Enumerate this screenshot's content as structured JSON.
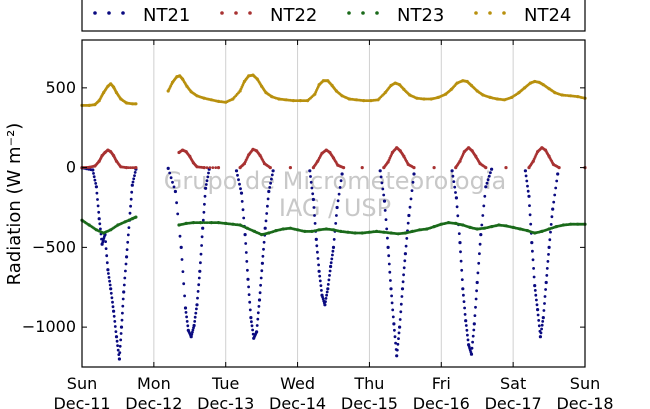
{
  "chart_data": {
    "type": "scatter",
    "ylabel": "Radiation (W m⁻²)",
    "ylim": [
      -1250,
      800
    ],
    "yticks": [
      500,
      0,
      -500,
      -1000
    ],
    "ytick_labels": [
      "500",
      "0",
      "−500",
      "−1000"
    ],
    "xlim": [
      0,
      7
    ],
    "xticks": [
      {
        "x": 0,
        "day": "Sun",
        "date": "Dec-11"
      },
      {
        "x": 1,
        "day": "Mon",
        "date": "Dec-12"
      },
      {
        "x": 2,
        "day": "Tue",
        "date": "Dec-13"
      },
      {
        "x": 3,
        "day": "Wed",
        "date": "Dec-14"
      },
      {
        "x": 4,
        "day": "Thu",
        "date": "Dec-15"
      },
      {
        "x": 5,
        "day": "Fri",
        "date": "Dec-16"
      },
      {
        "x": 6,
        "day": "Sat",
        "date": "Dec-17"
      },
      {
        "x": 7,
        "day": "Sun",
        "date": "Dec-18"
      }
    ],
    "grid": "vertical",
    "legend_position": "top",
    "watermark": [
      "Grupo de Micrometeorologia",
      "IAG / USP"
    ],
    "series": [
      {
        "name": "NT21",
        "color": "#0a0a80",
        "points": [
          [
            0.0,
            -2
          ],
          [
            0.15,
            -15
          ],
          [
            0.2,
            -120
          ],
          [
            0.24,
            -320
          ],
          [
            0.28,
            -480
          ],
          [
            0.32,
            -420
          ],
          [
            0.36,
            -640
          ],
          [
            0.4,
            -760
          ],
          [
            0.44,
            -900
          ],
          [
            0.48,
            -1060
          ],
          [
            0.52,
            -1200
          ],
          [
            0.55,
            -1000
          ],
          [
            0.58,
            -780
          ],
          [
            0.62,
            -560
          ],
          [
            0.66,
            -330
          ],
          [
            0.7,
            -110
          ],
          [
            0.75,
            -10
          ],
          [
            1.2,
            -5
          ],
          [
            1.3,
            -150
          ],
          [
            1.38,
            -500
          ],
          [
            1.44,
            -880
          ],
          [
            1.48,
            -1020
          ],
          [
            1.52,
            -1060
          ],
          [
            1.56,
            -990
          ],
          [
            1.6,
            -860
          ],
          [
            1.64,
            -650
          ],
          [
            1.68,
            -380
          ],
          [
            1.72,
            -130
          ],
          [
            1.77,
            -10
          ],
          [
            2.15,
            -20
          ],
          [
            2.22,
            -160
          ],
          [
            2.27,
            -420
          ],
          [
            2.31,
            -700
          ],
          [
            2.35,
            -940
          ],
          [
            2.39,
            -1070
          ],
          [
            2.43,
            -1030
          ],
          [
            2.47,
            -830
          ],
          [
            2.51,
            -600
          ],
          [
            2.55,
            -380
          ],
          [
            2.6,
            -150
          ],
          [
            2.66,
            -20
          ],
          [
            3.17,
            -20
          ],
          [
            3.22,
            -200
          ],
          [
            3.26,
            -450
          ],
          [
            3.3,
            -650
          ],
          [
            3.34,
            -800
          ],
          [
            3.38,
            -860
          ],
          [
            3.42,
            -760
          ],
          [
            3.46,
            -620
          ],
          [
            3.5,
            -500
          ],
          [
            3.55,
            -250
          ],
          [
            3.62,
            -40
          ],
          [
            4.15,
            -20
          ],
          [
            4.21,
            -210
          ],
          [
            4.26,
            -500
          ],
          [
            4.3,
            -760
          ],
          [
            4.34,
            -980
          ],
          [
            4.38,
            -1180
          ],
          [
            4.42,
            -1000
          ],
          [
            4.46,
            -760
          ],
          [
            4.5,
            -540
          ],
          [
            4.55,
            -300
          ],
          [
            4.62,
            -40
          ],
          [
            5.15,
            -20
          ],
          [
            5.21,
            -190
          ],
          [
            5.26,
            -470
          ],
          [
            5.3,
            -760
          ],
          [
            5.34,
            -960
          ],
          [
            5.38,
            -1110
          ],
          [
            5.42,
            -1170
          ],
          [
            5.46,
            -980
          ],
          [
            5.5,
            -720
          ],
          [
            5.55,
            -420
          ],
          [
            5.62,
            -120
          ],
          [
            5.7,
            -10
          ],
          [
            6.17,
            -20
          ],
          [
            6.22,
            -180
          ],
          [
            6.26,
            -470
          ],
          [
            6.3,
            -740
          ],
          [
            6.34,
            -890
          ],
          [
            6.38,
            -1060
          ],
          [
            6.42,
            -940
          ],
          [
            6.46,
            -720
          ],
          [
            6.5,
            -500
          ],
          [
            6.55,
            -260
          ],
          [
            6.62,
            -40
          ]
        ]
      },
      {
        "name": "NT22",
        "color": "#a83232",
        "points": [
          [
            0.0,
            0
          ],
          [
            0.1,
            2
          ],
          [
            0.18,
            10
          ],
          [
            0.24,
            40
          ],
          [
            0.28,
            75
          ],
          [
            0.32,
            95
          ],
          [
            0.36,
            110
          ],
          [
            0.4,
            100
          ],
          [
            0.44,
            75
          ],
          [
            0.48,
            40
          ],
          [
            0.54,
            5
          ],
          [
            0.62,
            0
          ],
          [
            0.75,
            0
          ],
          [
            1.35,
            95
          ],
          [
            1.4,
            110
          ],
          [
            1.45,
            100
          ],
          [
            1.5,
            70
          ],
          [
            1.55,
            30
          ],
          [
            1.6,
            5
          ],
          [
            1.7,
            0
          ],
          [
            1.9,
            0
          ],
          [
            2.2,
            0
          ],
          [
            2.26,
            25
          ],
          [
            2.32,
            80
          ],
          [
            2.38,
            115
          ],
          [
            2.43,
            105
          ],
          [
            2.48,
            75
          ],
          [
            2.54,
            25
          ],
          [
            2.62,
            0
          ],
          [
            2.9,
            0
          ],
          [
            3.22,
            0
          ],
          [
            3.28,
            40
          ],
          [
            3.34,
            90
          ],
          [
            3.4,
            110
          ],
          [
            3.45,
            95
          ],
          [
            3.5,
            60
          ],
          [
            3.56,
            15
          ],
          [
            3.64,
            0
          ],
          [
            3.9,
            0
          ],
          [
            4.2,
            0
          ],
          [
            4.26,
            35
          ],
          [
            4.32,
            95
          ],
          [
            4.38,
            125
          ],
          [
            4.43,
            105
          ],
          [
            4.48,
            70
          ],
          [
            4.54,
            20
          ],
          [
            4.62,
            0
          ],
          [
            4.9,
            0
          ],
          [
            5.2,
            0
          ],
          [
            5.26,
            40
          ],
          [
            5.32,
            100
          ],
          [
            5.38,
            125
          ],
          [
            5.43,
            105
          ],
          [
            5.48,
            70
          ],
          [
            5.54,
            25
          ],
          [
            5.62,
            0
          ],
          [
            5.9,
            0
          ],
          [
            6.22,
            0
          ],
          [
            6.28,
            40
          ],
          [
            6.34,
            100
          ],
          [
            6.4,
            125
          ],
          [
            6.45,
            110
          ],
          [
            6.5,
            70
          ],
          [
            6.56,
            20
          ],
          [
            6.64,
            0
          ],
          [
            7.0,
            0
          ]
        ]
      },
      {
        "name": "NT23",
        "color": "#1a6a1a",
        "points": [
          [
            0.0,
            -330
          ],
          [
            0.1,
            -360
          ],
          [
            0.2,
            -390
          ],
          [
            0.3,
            -410
          ],
          [
            0.4,
            -390
          ],
          [
            0.5,
            -360
          ],
          [
            0.6,
            -340
          ],
          [
            0.7,
            -320
          ],
          [
            0.75,
            -310
          ],
          [
            1.35,
            -360
          ],
          [
            1.45,
            -350
          ],
          [
            1.55,
            -345
          ],
          [
            1.65,
            -345
          ],
          [
            1.8,
            -345
          ],
          [
            1.9,
            -345
          ],
          [
            2.0,
            -350
          ],
          [
            2.1,
            -355
          ],
          [
            2.2,
            -360
          ],
          [
            2.3,
            -380
          ],
          [
            2.4,
            -400
          ],
          [
            2.5,
            -420
          ],
          [
            2.6,
            -410
          ],
          [
            2.7,
            -395
          ],
          [
            2.8,
            -385
          ],
          [
            2.9,
            -380
          ],
          [
            3.0,
            -390
          ],
          [
            3.1,
            -400
          ],
          [
            3.2,
            -400
          ],
          [
            3.3,
            -390
          ],
          [
            3.4,
            -385
          ],
          [
            3.5,
            -390
          ],
          [
            3.6,
            -400
          ],
          [
            3.7,
            -405
          ],
          [
            3.8,
            -410
          ],
          [
            3.9,
            -410
          ],
          [
            4.0,
            -405
          ],
          [
            4.1,
            -400
          ],
          [
            4.2,
            -405
          ],
          [
            4.3,
            -410
          ],
          [
            4.4,
            -415
          ],
          [
            4.5,
            -410
          ],
          [
            4.6,
            -400
          ],
          [
            4.7,
            -390
          ],
          [
            4.8,
            -385
          ],
          [
            4.9,
            -370
          ],
          [
            5.0,
            -355
          ],
          [
            5.1,
            -345
          ],
          [
            5.2,
            -350
          ],
          [
            5.3,
            -360
          ],
          [
            5.4,
            -375
          ],
          [
            5.5,
            -385
          ],
          [
            5.6,
            -380
          ],
          [
            5.7,
            -370
          ],
          [
            5.8,
            -360
          ],
          [
            5.9,
            -365
          ],
          [
            6.0,
            -375
          ],
          [
            6.1,
            -385
          ],
          [
            6.2,
            -395
          ],
          [
            6.3,
            -410
          ],
          [
            6.4,
            -400
          ],
          [
            6.5,
            -385
          ],
          [
            6.6,
            -370
          ],
          [
            6.7,
            -360
          ],
          [
            6.8,
            -355
          ],
          [
            6.9,
            -355
          ],
          [
            7.0,
            -355
          ]
        ]
      },
      {
        "name": "NT24",
        "color": "#b8900e",
        "points": [
          [
            0.0,
            390
          ],
          [
            0.1,
            390
          ],
          [
            0.18,
            395
          ],
          [
            0.24,
            420
          ],
          [
            0.3,
            470
          ],
          [
            0.36,
            510
          ],
          [
            0.4,
            525
          ],
          [
            0.44,
            505
          ],
          [
            0.48,
            470
          ],
          [
            0.54,
            430
          ],
          [
            0.62,
            405
          ],
          [
            0.7,
            400
          ],
          [
            0.75,
            400
          ],
          [
            1.2,
            480
          ],
          [
            1.26,
            535
          ],
          [
            1.32,
            570
          ],
          [
            1.36,
            575
          ],
          [
            1.4,
            555
          ],
          [
            1.46,
            510
          ],
          [
            1.52,
            475
          ],
          [
            1.6,
            450
          ],
          [
            1.7,
            435
          ],
          [
            1.8,
            425
          ],
          [
            1.9,
            415
          ],
          [
            2.0,
            410
          ],
          [
            2.1,
            430
          ],
          [
            2.2,
            480
          ],
          [
            2.26,
            540
          ],
          [
            2.32,
            575
          ],
          [
            2.38,
            580
          ],
          [
            2.44,
            555
          ],
          [
            2.5,
            510
          ],
          [
            2.56,
            470
          ],
          [
            2.64,
            445
          ],
          [
            2.74,
            430
          ],
          [
            2.84,
            425
          ],
          [
            2.94,
            420
          ],
          [
            3.04,
            420
          ],
          [
            3.14,
            420
          ],
          [
            3.24,
            460
          ],
          [
            3.3,
            520
          ],
          [
            3.36,
            545
          ],
          [
            3.42,
            545
          ],
          [
            3.48,
            515
          ],
          [
            3.54,
            480
          ],
          [
            3.62,
            450
          ],
          [
            3.72,
            430
          ],
          [
            3.82,
            425
          ],
          [
            3.92,
            420
          ],
          [
            4.02,
            420
          ],
          [
            4.12,
            425
          ],
          [
            4.22,
            470
          ],
          [
            4.3,
            515
          ],
          [
            4.36,
            530
          ],
          [
            4.42,
            520
          ],
          [
            4.48,
            490
          ],
          [
            4.56,
            455
          ],
          [
            4.66,
            435
          ],
          [
            4.76,
            430
          ],
          [
            4.86,
            430
          ],
          [
            4.96,
            440
          ],
          [
            5.06,
            460
          ],
          [
            5.14,
            490
          ],
          [
            5.22,
            530
          ],
          [
            5.3,
            545
          ],
          [
            5.36,
            540
          ],
          [
            5.42,
            515
          ],
          [
            5.5,
            480
          ],
          [
            5.58,
            455
          ],
          [
            5.68,
            440
          ],
          [
            5.78,
            430
          ],
          [
            5.88,
            425
          ],
          [
            5.98,
            440
          ],
          [
            6.08,
            470
          ],
          [
            6.16,
            500
          ],
          [
            6.24,
            530
          ],
          [
            6.3,
            540
          ],
          [
            6.36,
            535
          ],
          [
            6.42,
            520
          ],
          [
            6.5,
            495
          ],
          [
            6.58,
            470
          ],
          [
            6.68,
            455
          ],
          [
            6.8,
            450
          ],
          [
            6.9,
            445
          ],
          [
            7.0,
            435
          ]
        ]
      }
    ]
  }
}
